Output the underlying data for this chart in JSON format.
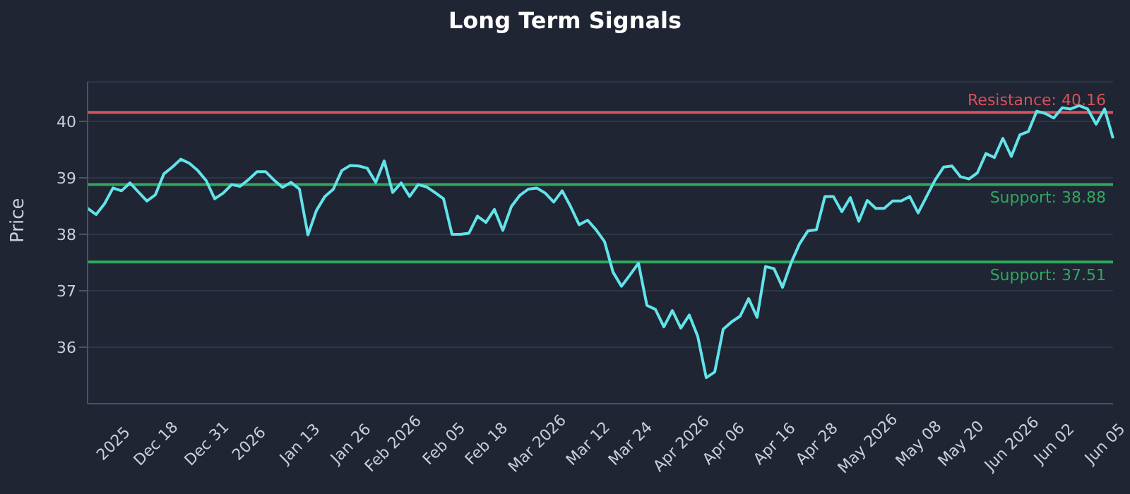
{
  "chart_data": {
    "type": "line",
    "title": "Long Term Signals",
    "ylabel": "Price",
    "categories": [
      null,
      null,
      null,
      "2025",
      null,
      null,
      null,
      null,
      "Dec 18",
      null,
      null,
      null,
      null,
      null,
      "Dec 31",
      null,
      null,
      null,
      null,
      "2026",
      null,
      null,
      null,
      null,
      null,
      "Jan 13",
      null,
      null,
      null,
      null,
      null,
      "Jan 26",
      null,
      null,
      null,
      null,
      "Feb 2026",
      null,
      null,
      null,
      null,
      null,
      "Feb 05",
      null,
      null,
      null,
      null,
      "Feb 18",
      null,
      null,
      null,
      null,
      null,
      "Mar 2026",
      null,
      null,
      null,
      null,
      null,
      "Mar 12",
      null,
      null,
      null,
      null,
      "Mar 24",
      null,
      null,
      null,
      null,
      null,
      "Apr 2026",
      null,
      null,
      null,
      null,
      "Apr 06",
      null,
      null,
      null,
      null,
      null,
      "Apr 16",
      null,
      null,
      null,
      null,
      "Apr 28",
      null,
      null,
      null,
      null,
      null,
      "May 2026",
      null,
      null,
      null,
      null,
      null,
      "May 08",
      null,
      null,
      null,
      null,
      "May 20",
      null,
      null,
      null,
      null,
      null,
      "Jun 2026",
      null,
      null,
      null,
      null,
      "Jun 02",
      null,
      null,
      null,
      null,
      null,
      "Jun 05",
      null
    ],
    "series": [
      {
        "color": "#62e3ea",
        "values": [
          38.46,
          38.35,
          38.54,
          38.82,
          38.77,
          38.91,
          38.75,
          38.59,
          38.7,
          39.07,
          39.19,
          39.33,
          39.26,
          39.13,
          38.95,
          38.63,
          38.73,
          38.88,
          38.85,
          38.97,
          39.11,
          39.11,
          38.96,
          38.83,
          38.92,
          38.8,
          37.99,
          38.42,
          38.67,
          38.8,
          39.13,
          39.22,
          39.21,
          39.17,
          38.92,
          39.3,
          38.74,
          38.91,
          38.67,
          38.88,
          38.84,
          38.74,
          38.63,
          38.0,
          38.0,
          38.02,
          38.32,
          38.21,
          38.44,
          38.07,
          38.49,
          38.69,
          38.8,
          38.82,
          38.73,
          38.57,
          38.77,
          38.49,
          38.17,
          38.25,
          38.08,
          37.87,
          37.33,
          37.08,
          37.28,
          37.49,
          36.74,
          36.67,
          36.36,
          36.65,
          36.34,
          36.57,
          36.19,
          35.46,
          35.56,
          36.32,
          36.45,
          36.55,
          36.86,
          36.53,
          37.43,
          37.39,
          37.06,
          37.49,
          37.83,
          38.06,
          38.08,
          38.67,
          38.67,
          38.4,
          38.65,
          38.23,
          38.6,
          38.46,
          38.46,
          38.59,
          38.59,
          38.67,
          38.38,
          38.67,
          38.96,
          39.19,
          39.21,
          39.02,
          38.98,
          39.09,
          39.43,
          39.36,
          39.7,
          39.38,
          39.76,
          39.82,
          40.18,
          40.14,
          40.06,
          40.24,
          40.22,
          40.28,
          40.22,
          39.95,
          40.22,
          39.7
        ]
      }
    ],
    "ylim": [
      35,
      40.7
    ],
    "yticks": [
      36,
      37,
      38,
      39,
      40
    ],
    "grid": "y",
    "ref_lines": [
      {
        "axis": "y",
        "value": 40.16,
        "label": "Resistance: 40.16",
        "color": "#d9515a"
      },
      {
        "axis": "y",
        "value": 38.88,
        "label": "Support: 38.88",
        "color": "#2fa85c"
      },
      {
        "axis": "y",
        "value": 37.51,
        "label": "Support: 37.51",
        "color": "#2fa85c"
      }
    ]
  }
}
